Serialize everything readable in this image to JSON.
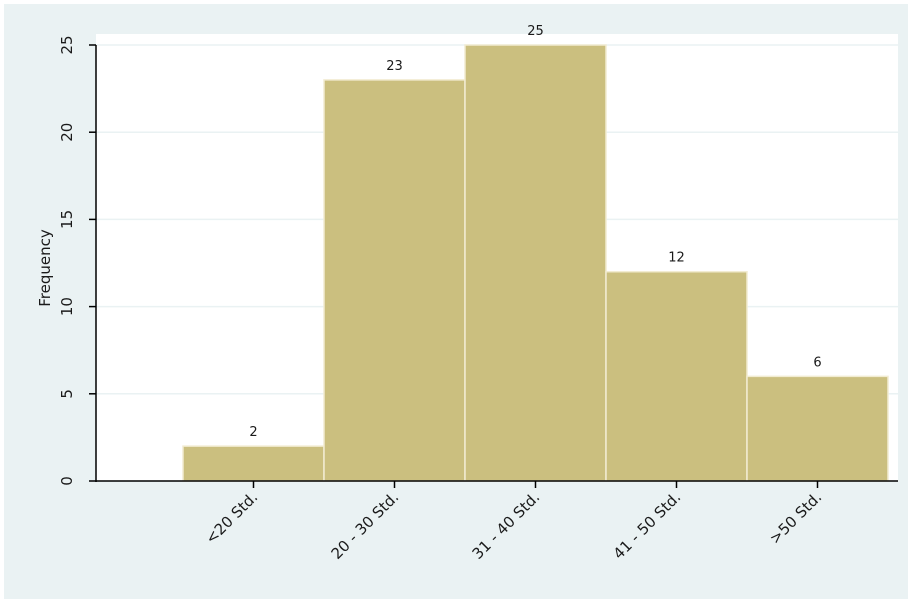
{
  "chart_data": {
    "type": "bar",
    "title": "",
    "xlabel": "",
    "ylabel": "Frequency",
    "categories": [
      "<20 Std.",
      "20 - 30 Std.",
      "31 - 40 Std.",
      "41 - 50 Std.",
      ">50 Std."
    ],
    "values": [
      2,
      23,
      25,
      12,
      6
    ],
    "data_labels": [
      "2",
      "23",
      "25",
      "12",
      "6"
    ],
    "yticks": [
      0,
      5,
      10,
      15,
      20,
      25
    ],
    "ytick_labels": [
      "0",
      "5",
      "10",
      "15",
      "20",
      "25"
    ],
    "ylim": [
      0,
      25
    ],
    "grid": true,
    "legend": "none",
    "colors": {
      "bar": "#cbbf7f",
      "bar_edge": "#f2ecd2",
      "plot_background": "#ffffff",
      "outer_background": "#eaf2f3",
      "gridline": "#eaf2f3",
      "axis": "#000000"
    }
  }
}
